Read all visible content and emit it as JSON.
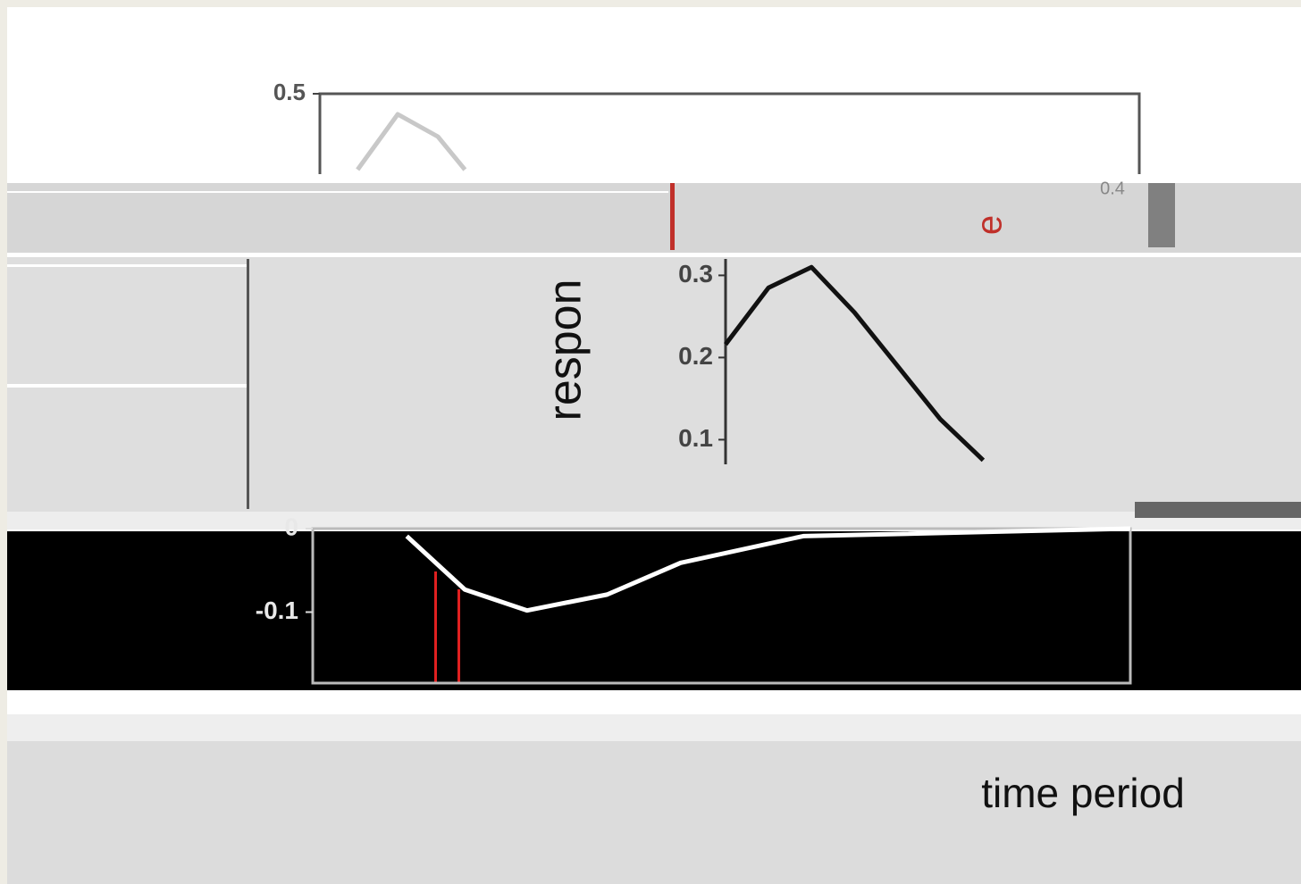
{
  "chart_data": [
    {
      "type": "line",
      "x": [
        0.46,
        0.95,
        1.44,
        1.77
      ],
      "values": [
        0.415,
        0.477,
        0.452,
        0.415
      ],
      "color": "#c8c8c8",
      "xlim": [
        0,
        10
      ],
      "ylim": [
        0.41,
        0.5
      ],
      "yticks": [
        0.5
      ],
      "annotations": [
        "0.4"
      ]
    },
    {
      "type": "line",
      "x": [
        0,
        1,
        2,
        3,
        4,
        5,
        6
      ],
      "values": [
        0.216,
        0.285,
        0.31,
        0.255,
        0.19,
        0.125,
        0.075
      ],
      "color": "#111111",
      "xlim": [
        0,
        13.4
      ],
      "ylim": [
        0.07,
        0.32
      ],
      "yticks": [
        0.1,
        0.2,
        0.3
      ],
      "ylabel": "respon",
      "annotations": [
        "e"
      ]
    },
    {
      "type": "line",
      "x": [
        1.15,
        1.86,
        2.62,
        3.6,
        4.5,
        6,
        10
      ],
      "values": [
        -0.009,
        -0.073,
        -0.098,
        -0.079,
        -0.041,
        -0.009,
        0.0
      ],
      "color": "#ffffff",
      "xlim": [
        0,
        10
      ],
      "ylim": [
        -0.185,
        0
      ],
      "yticks": [
        0,
        -0.1
      ],
      "xlabel": "time period"
    }
  ]
}
